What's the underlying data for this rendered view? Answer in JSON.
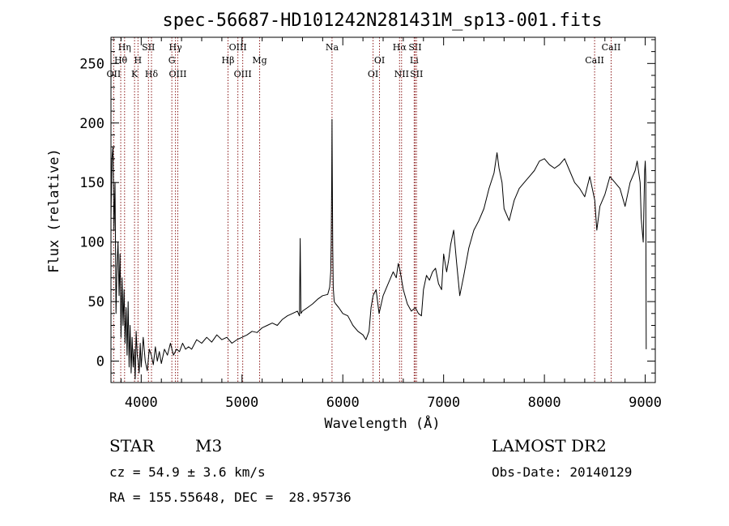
{
  "chart_data": {
    "type": "line",
    "title": "spec-56687-HD101242N281431M_sp13-001.fits",
    "xlabel": "Wavelength (Å)",
    "ylabel": "Flux (relative)",
    "xlim": [
      3700,
      9100
    ],
    "ylim": [
      -18,
      272
    ],
    "xticks": [
      4000,
      5000,
      6000,
      7000,
      8000,
      9000
    ],
    "yticks": [
      0,
      50,
      100,
      150,
      200,
      250
    ],
    "grid": false,
    "line_color": "#000000",
    "marker_color": "#8b1a1a",
    "series": [
      {
        "x": [
          3700,
          3710,
          3720,
          3730,
          3740,
          3750,
          3760,
          3770,
          3780,
          3790,
          3800,
          3810,
          3820,
          3830,
          3840,
          3850,
          3860,
          3870,
          3880,
          3890,
          3900,
          3910,
          3920,
          3930,
          3940,
          3950,
          3960,
          3970,
          3980,
          3990,
          4000,
          4020,
          4040,
          4060,
          4080,
          4100,
          4120,
          4140,
          4160,
          4180,
          4200,
          4230,
          4260,
          4290,
          4320,
          4350,
          4380,
          4410,
          4440,
          4470,
          4500,
          4550,
          4600,
          4650,
          4700,
          4750,
          4800,
          4850,
          4900,
          4950,
          5000,
          5050,
          5100,
          5150,
          5200,
          5250,
          5300,
          5350,
          5400,
          5450,
          5500,
          5550,
          5570,
          5577,
          5584,
          5600,
          5650,
          5700,
          5750,
          5800,
          5850,
          5870,
          5880,
          5885,
          5890,
          5893,
          5896,
          5900,
          5905,
          5915,
          5930,
          5960,
          6000,
          6050,
          6100,
          6150,
          6200,
          6230,
          6260,
          6280,
          6300,
          6330,
          6360,
          6400,
          6450,
          6500,
          6530,
          6550,
          6563,
          6580,
          6600,
          6640,
          6680,
          6720,
          6750,
          6780,
          6800,
          6830,
          6860,
          6890,
          6920,
          6950,
          6980,
          7000,
          7030,
          7050,
          7070,
          7100,
          7130,
          7160,
          7200,
          7250,
          7300,
          7350,
          7400,
          7450,
          7500,
          7530,
          7550,
          7580,
          7600,
          7650,
          7700,
          7750,
          7800,
          7850,
          7900,
          7950,
          8000,
          8050,
          8100,
          8150,
          8200,
          8250,
          8300,
          8350,
          8400,
          8450,
          8500,
          8520,
          8550,
          8600,
          8650,
          8700,
          8750,
          8800,
          8850,
          8900,
          8920,
          8950,
          8960,
          8980,
          8995,
          9000,
          9005,
          9010
        ],
        "y": [
          120,
          170,
          180,
          110,
          150,
          40,
          80,
          100,
          55,
          90,
          20,
          70,
          30,
          60,
          15,
          45,
          5,
          50,
          -5,
          30,
          -10,
          20,
          -5,
          10,
          -15,
          25,
          5,
          0,
          -10,
          15,
          -5,
          20,
          0,
          -8,
          10,
          5,
          -3,
          12,
          0,
          8,
          -2,
          10,
          5,
          15,
          5,
          10,
          8,
          15,
          10,
          12,
          10,
          18,
          15,
          20,
          16,
          22,
          18,
          20,
          15,
          18,
          20,
          22,
          25,
          24,
          28,
          30,
          32,
          30,
          35,
          38,
          40,
          42,
          38,
          103,
          40,
          42,
          45,
          48,
          52,
          55,
          56,
          62,
          75,
          100,
          150,
          203,
          150,
          95,
          62,
          50,
          48,
          45,
          40,
          38,
          30,
          25,
          22,
          18,
          25,
          45,
          55,
          60,
          40,
          55,
          65,
          75,
          70,
          82,
          78,
          70,
          60,
          48,
          42,
          45,
          40,
          38,
          60,
          72,
          68,
          75,
          78,
          65,
          60,
          90,
          75,
          85,
          98,
          110,
          82,
          55,
          72,
          95,
          110,
          118,
          128,
          145,
          158,
          175,
          162,
          150,
          128,
          118,
          135,
          145,
          150,
          155,
          160,
          168,
          170,
          165,
          162,
          165,
          170,
          160,
          150,
          145,
          138,
          155,
          135,
          110,
          130,
          140,
          155,
          150,
          145,
          130,
          150,
          160,
          168,
          150,
          120,
          100,
          160,
          168,
          155,
          10
        ]
      }
    ],
    "line_markers": [
      {
        "name": "Hη",
        "x": 3835,
        "row": 1
      },
      {
        "name": "Hθ",
        "x": 3797,
        "row": 2
      },
      {
        "name": "OII",
        "x": 3727,
        "row": 3
      },
      {
        "name": "SII",
        "x": 4072,
        "row": 1
      },
      {
        "name": "H",
        "x": 3968,
        "row": 2
      },
      {
        "name": "K",
        "x": 3934,
        "row": 3
      },
      {
        "name": "Hδ",
        "x": 4102,
        "row": 3
      },
      {
        "name": "Hγ",
        "x": 4340,
        "row": 1
      },
      {
        "name": "G",
        "x": 4304,
        "row": 2
      },
      {
        "name": "OIII",
        "x": 4363,
        "row": 3
      },
      {
        "name": "OIII",
        "x": 4959,
        "row": 1
      },
      {
        "name": "Hβ",
        "x": 4861,
        "row": 2
      },
      {
        "name": "Mg",
        "x": 5175,
        "row": 2
      },
      {
        "name": "OIII",
        "x": 5007,
        "row": 3
      },
      {
        "name": "Na",
        "x": 5893,
        "row": 1
      },
      {
        "name": "OI",
        "x": 6364,
        "row": 2
      },
      {
        "name": "OI",
        "x": 6300,
        "row": 3
      },
      {
        "name": "Hα",
        "x": 6563,
        "row": 1
      },
      {
        "name": "SII",
        "x": 6717,
        "row": 1
      },
      {
        "name": "Li",
        "x": 6708,
        "row": 2
      },
      {
        "name": "NII",
        "x": 6583,
        "row": 3
      },
      {
        "name": "SII",
        "x": 6731,
        "row": 3
      },
      {
        "name": "CaII",
        "x": 8662,
        "row": 1
      },
      {
        "name": "CaII",
        "x": 8498,
        "row": 2
      }
    ]
  },
  "info": {
    "object_class": "STAR",
    "subclass": "M3",
    "survey": "LAMOST DR2",
    "cz": "cz = 54.9 ± 3.6 km/s",
    "obs_date": "Obs-Date: 20140129",
    "coords": "RA = 155.55648, DEC =  28.95736"
  }
}
